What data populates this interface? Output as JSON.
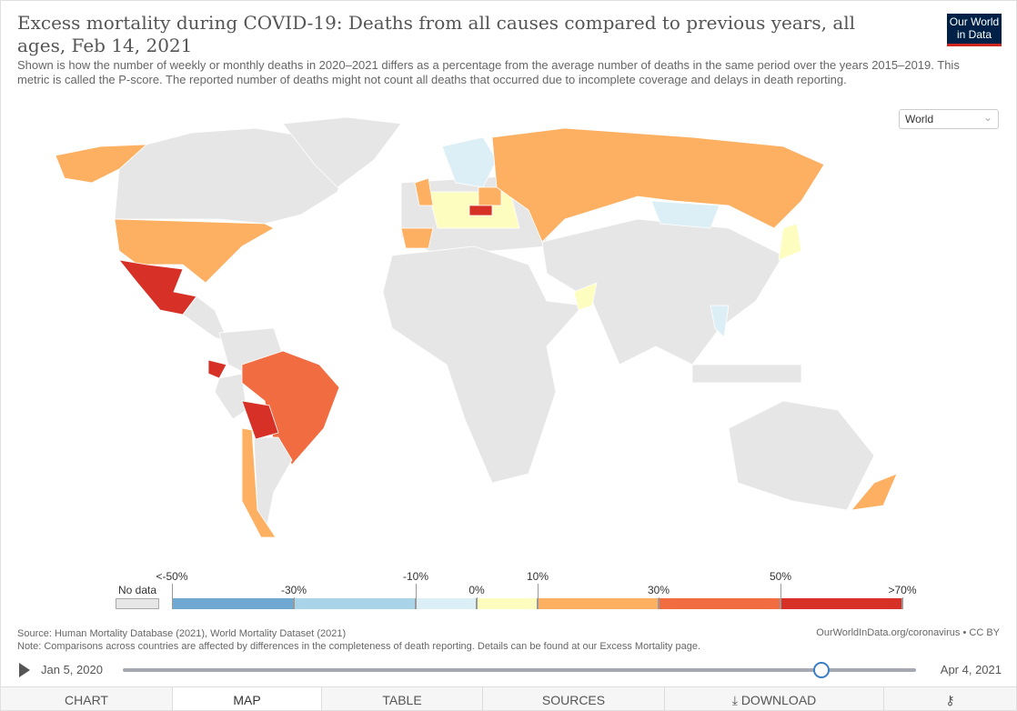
{
  "header": {
    "title": "Excess mortality during COVID-19: Deaths from all causes compared to previous years, all ages, Feb 14, 2021",
    "subtitle": "Shown is how the number of weekly or monthly deaths in 2020–2021 differs as a percentage from the average number of deaths in the same period over the years 2015–2019. This metric is called the P-score. The reported number of deaths might not count all deaths that occurred due to incomplete coverage and delays in death reporting.",
    "logo": "Our World in Data",
    "region_select": "World"
  },
  "legend": {
    "no_data_label": "No data",
    "no_data_color": "#e6e6e6",
    "bins": [
      {
        "from": "<-50%",
        "to": "-30%",
        "color": "#6fa8d0"
      },
      {
        "from": "-30%",
        "to": "-10%",
        "color": "#a9d4e8"
      },
      {
        "from": "-10%",
        "to": "0%",
        "color": "#ddeff6"
      },
      {
        "from": "0%",
        "to": "10%",
        "color": "#fefdc0"
      },
      {
        "from": "10%",
        "to": "30%",
        "color": "#fdb061"
      },
      {
        "from": "30%",
        "to": "50%",
        "color": "#f26c42"
      },
      {
        "from": "50%",
        "to": ">70%",
        "color": "#d73027"
      }
    ],
    "labels": [
      "<-50%",
      "-30%",
      "-10%",
      "0%",
      "10%",
      "30%",
      "50%",
      ">70%"
    ]
  },
  "map_data": {
    "Mexico": ">50%",
    "Ecuador": ">50%",
    "Bolivia": ">50%",
    "Czechia": ">50%",
    "Brazil": "30-50%",
    "United States": "10-30%",
    "Russia": "10-30%",
    "Chile": "10-30%",
    "United Kingdom": "10-30%",
    "Spain": "10-30%",
    "Poland": "10-30%",
    "New Zealand": "10-30%",
    "Alaska": "10-30%",
    "Central Europe": "0-10%",
    "Japan": "0-10%",
    "Oman": "0-10%",
    "Scandinavia": "-10-0%",
    "Mongolia": "-10-0%",
    "Thailand": "-10-0%"
  },
  "footer": {
    "source": "Source: Human Mortality Database (2021), World Mortality Dataset (2021)",
    "note": "Note: Comparisons across countries are affected by differences in the completeness of death reporting. Details can be found at our Excess Mortality page.",
    "credit": "OurWorldInData.org/coronavirus • CC BY"
  },
  "timeline": {
    "start": "Jan 5, 2020",
    "end": "Apr 4, 2021",
    "position_fraction": 0.88
  },
  "tabs": [
    "CHART",
    "MAP",
    "TABLE",
    "SOURCES",
    "DOWNLOAD",
    ""
  ],
  "active_tab": "MAP"
}
